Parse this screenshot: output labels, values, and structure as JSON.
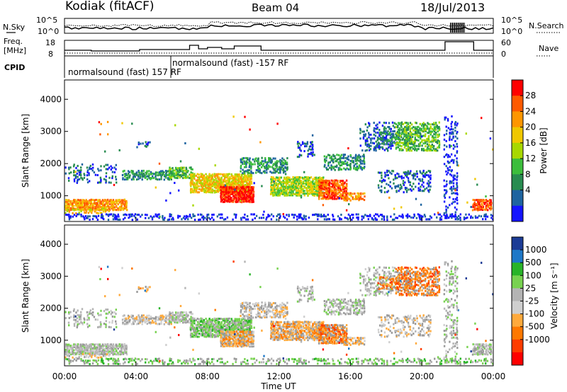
{
  "header": {
    "station": "Kodiak (fitACF)",
    "beam": "Beam 04",
    "date": "18/Jul/2013"
  },
  "top_panels": {
    "nsky_label": "N.Sky",
    "nsearch_label": "N.Search",
    "nsky_ticks": [
      "10^5",
      "10^0"
    ],
    "nsearch_ticks": [
      "10^5",
      "10^0"
    ],
    "freq_label_1": "Freq.",
    "freq_label_2": "[MHz]",
    "freq_ticks": [
      "18",
      "8"
    ],
    "nave_label": "Nave",
    "nave_ticks": [
      "60",
      "0"
    ],
    "cpid_label": "CPID",
    "cpid_text_1": "normalsound (fast) 157 RF",
    "cpid_text_2": "normalsound (fast) -157 RF"
  },
  "chart_data": [
    {
      "type": "heatmap",
      "title": "Power",
      "ylabel": "Slant Range [km]",
      "ylim": [
        200,
        4600
      ],
      "y_ticks": [
        "1000",
        "2000",
        "3000",
        "4000"
      ],
      "colorbar_label": "Power [dB]",
      "colorbar_ticks": [
        "28",
        "24",
        "20",
        "16",
        "12",
        "8",
        "4"
      ],
      "colorbar_colors": [
        "#ff0000",
        "#ff5a00",
        "#ff9600",
        "#f0c800",
        "#a8d800",
        "#3cbe3c",
        "#288c50",
        "#1e64a0",
        "#1414ff"
      ]
    },
    {
      "type": "heatmap",
      "title": "Velocity",
      "ylabel": "Slant Range [km]",
      "ylim": [
        200,
        4600
      ],
      "y_ticks": [
        "1000",
        "2000",
        "3000",
        "4000"
      ],
      "colorbar_label": "Velocity [m s⁻¹]",
      "colorbar_ticks": [
        "1000",
        "500",
        "100",
        "25",
        "-25",
        "-100",
        "-500",
        "-1000"
      ],
      "colorbar_colors": [
        "#1c3c96",
        "#1e78c8",
        "#28b428",
        "#78d250",
        "#b4b4b4",
        "#cfcfcf",
        "#ffaa3c",
        "#ff7800",
        "#ff3c00",
        "#ff0000"
      ]
    }
  ],
  "x_axis": {
    "label": "Time UT",
    "ticks": [
      "00:00",
      "04:00",
      "08:00",
      "12:00",
      "16:00",
      "20:00",
      "00:00"
    ],
    "range_hours": [
      0,
      24
    ]
  },
  "colors": {
    "grey_scatter": "#9a9a9a"
  }
}
